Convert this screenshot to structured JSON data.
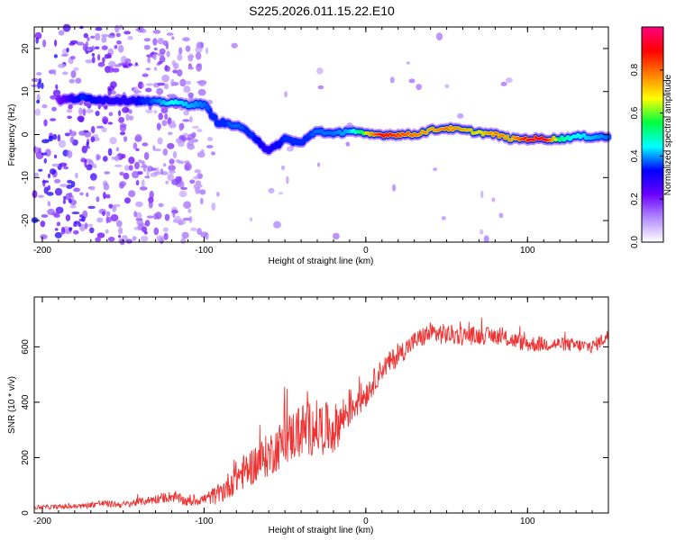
{
  "title": "S225.2026.011.15.22.E10",
  "chart_data": [
    {
      "type": "heatmap",
      "name": "spectrogram",
      "xlabel": "Height of straight line (km)",
      "ylabel": "Frequency (Hz)",
      "xlim": [
        -205,
        150
      ],
      "ylim": [
        -25,
        25
      ],
      "xticks": [
        -200,
        -100,
        0,
        100
      ],
      "yticks": [
        -20,
        -10,
        0,
        10,
        20
      ],
      "colorbar": {
        "label": "Normalized spectral amplitude",
        "range": [
          0,
          1
        ],
        "ticks": [
          0.0,
          0.2,
          0.4,
          0.6,
          0.8
        ],
        "tick_labels": [
          "0.0",
          "0.2",
          "0.4",
          "0.6",
          "0.8"
        ],
        "colormap": [
          "#ffffff",
          "#b48cff",
          "#6a00ff",
          "#0000ff",
          "#00ffff",
          "#00ff40",
          "#ffff00",
          "#ff8000",
          "#ff0000",
          "#ff0080"
        ]
      },
      "ridge": [
        {
          "x": -190,
          "freq": 8,
          "amp": 0.2
        },
        {
          "x": -175,
          "freq": 8.5,
          "amp": 0.35
        },
        {
          "x": -160,
          "freq": 8,
          "amp": 0.3
        },
        {
          "x": -145,
          "freq": 8,
          "amp": 0.3
        },
        {
          "x": -130,
          "freq": 7.5,
          "amp": 0.4
        },
        {
          "x": -120,
          "freq": 7.5,
          "amp": 0.5
        },
        {
          "x": -110,
          "freq": 7,
          "amp": 0.45
        },
        {
          "x": -100,
          "freq": 7,
          "amp": 0.4
        },
        {
          "x": -92,
          "freq": 3,
          "amp": 0.35
        },
        {
          "x": -80,
          "freq": 2,
          "amp": 0.4
        },
        {
          "x": -70,
          "freq": 0,
          "amp": 0.35
        },
        {
          "x": -60,
          "freq": -4,
          "amp": 0.3
        },
        {
          "x": -50,
          "freq": -1,
          "amp": 0.35
        },
        {
          "x": -40,
          "freq": -2,
          "amp": 0.35
        },
        {
          "x": -30,
          "freq": 1,
          "amp": 0.4
        },
        {
          "x": -20,
          "freq": 0,
          "amp": 0.4
        },
        {
          "x": -10,
          "freq": 1,
          "amp": 0.45
        },
        {
          "x": 0,
          "freq": 0,
          "amp": 0.7
        },
        {
          "x": 10,
          "freq": 0,
          "amp": 0.9
        },
        {
          "x": 20,
          "freq": 0,
          "amp": 0.85
        },
        {
          "x": 30,
          "freq": 0,
          "amp": 0.8
        },
        {
          "x": 40,
          "freq": 1,
          "amp": 0.75
        },
        {
          "x": 50,
          "freq": 1.5,
          "amp": 0.8
        },
        {
          "x": 60,
          "freq": 1,
          "amp": 0.75
        },
        {
          "x": 70,
          "freq": 0.5,
          "amp": 0.7
        },
        {
          "x": 80,
          "freq": 0,
          "amp": 0.8
        },
        {
          "x": 90,
          "freq": -1,
          "amp": 0.75
        },
        {
          "x": 100,
          "freq": -1,
          "amp": 0.9
        },
        {
          "x": 110,
          "freq": -1,
          "amp": 0.95
        },
        {
          "x": 120,
          "freq": -1,
          "amp": 0.6
        },
        {
          "x": 130,
          "freq": -0.5,
          "amp": 0.5
        },
        {
          "x": 140,
          "freq": -0.5,
          "amp": 0.45
        },
        {
          "x": 150,
          "freq": -0.5,
          "amp": 0.4
        }
      ]
    },
    {
      "type": "line",
      "name": "snr",
      "xlabel": "Height of straight line (km)",
      "ylabel": "SNR (10 * v/v)",
      "xlim": [
        -205,
        150
      ],
      "ylim": [
        0,
        780
      ],
      "xticks": [
        -200,
        -100,
        0,
        100
      ],
      "yticks": [
        0,
        200,
        400,
        600
      ],
      "color": "#ee3333",
      "x": [
        -205,
        -190,
        -175,
        -165,
        -150,
        -135,
        -120,
        -110,
        -100,
        -90,
        -80,
        -70,
        -60,
        -50,
        -40,
        -30,
        -20,
        -10,
        0,
        10,
        20,
        30,
        40,
        60,
        80,
        100,
        120,
        140,
        150
      ],
      "y": [
        20,
        22,
        25,
        35,
        30,
        45,
        60,
        40,
        50,
        70,
        130,
        170,
        210,
        260,
        300,
        310,
        300,
        380,
        430,
        520,
        570,
        620,
        650,
        640,
        640,
        610,
        610,
        600,
        640
      ],
      "noise": [
        8,
        8,
        10,
        12,
        12,
        15,
        20,
        18,
        20,
        40,
        60,
        70,
        80,
        90,
        100,
        100,
        90,
        70,
        50,
        40,
        40,
        35,
        40,
        35,
        30,
        30,
        25,
        25,
        25
      ]
    }
  ]
}
